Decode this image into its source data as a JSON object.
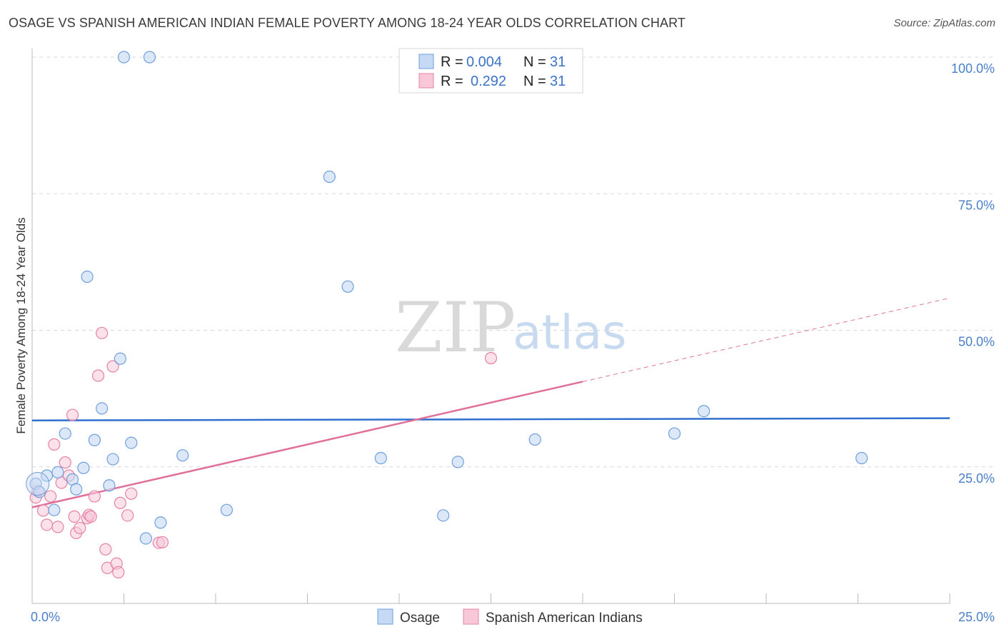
{
  "header": {
    "title": "OSAGE VS SPANISH AMERICAN INDIAN FEMALE POVERTY AMONG 18-24 YEAR OLDS CORRELATION CHART",
    "source": "Source: ZipAtlas.com"
  },
  "legend_box": {
    "rows": [
      {
        "r_label": "R =",
        "r_value": "0.004",
        "n_label": "N =",
        "n_value": "31"
      },
      {
        "r_label": "R =",
        "r_value": "0.292",
        "n_label": "N =",
        "n_value": "31"
      }
    ]
  },
  "watermark": {
    "zip": "ZIP",
    "atlas": "atlas"
  },
  "colors": {
    "osage_fill": "#c5d9f4",
    "osage_stroke": "#6f9fdc",
    "osage_line": "#2f6fcf",
    "sai_fill": "#f8c8d8",
    "sai_stroke": "#e682a5",
    "sai_line": "#e0709a",
    "tick": "#4a7fc9",
    "grid": "#d8d8d8"
  },
  "chart_data": {
    "type": "scatter",
    "title": "OSAGE VS SPANISH AMERICAN INDIAN FEMALE POVERTY AMONG 18-24 YEAR OLDS CORRELATION CHART",
    "xlabel": "",
    "ylabel": "Female Poverty Among 18-24 Year Olds",
    "xlim": [
      0,
      25
    ],
    "ylim": [
      0,
      100
    ],
    "x_tick_labels": [
      {
        "value": 0,
        "label": "0.0%"
      },
      {
        "value": 25,
        "label": "25.0%"
      }
    ],
    "y_tick_labels": [
      {
        "value": 25,
        "label": "25.0%"
      },
      {
        "value": 50,
        "label": "50.0%"
      },
      {
        "value": 75,
        "label": "75.0%"
      },
      {
        "value": 100,
        "label": "100.0%"
      }
    ],
    "grid": true,
    "legend_position": "bottom",
    "series": [
      {
        "name": "Osage",
        "r": 0.004,
        "n": 31,
        "trend": {
          "x": [
            0,
            25
          ],
          "y": [
            33.5,
            33.9
          ]
        },
        "points": [
          [
            0.1,
            21.9
          ],
          [
            0.2,
            20.4
          ],
          [
            0.4,
            23.4
          ],
          [
            0.6,
            17.1
          ],
          [
            0.9,
            31.1
          ],
          [
            1.1,
            22.7
          ],
          [
            1.2,
            20.9
          ],
          [
            1.4,
            24.8
          ],
          [
            1.5,
            59.8
          ],
          [
            1.7,
            29.9
          ],
          [
            1.9,
            35.7
          ],
          [
            2.1,
            21.6
          ],
          [
            2.2,
            26.4
          ],
          [
            2.4,
            44.8
          ],
          [
            2.5,
            100.0
          ],
          [
            2.7,
            29.4
          ],
          [
            3.1,
            11.9
          ],
          [
            3.2,
            100.0
          ],
          [
            3.5,
            14.8
          ],
          [
            4.1,
            27.1
          ],
          [
            5.3,
            17.1
          ],
          [
            8.1,
            78.1
          ],
          [
            8.6,
            58.0
          ],
          [
            9.5,
            26.6
          ],
          [
            11.2,
            16.1
          ],
          [
            11.6,
            25.9
          ],
          [
            13.7,
            30.0
          ],
          [
            17.5,
            31.1
          ],
          [
            18.3,
            35.2
          ],
          [
            22.6,
            26.6
          ],
          [
            0.7,
            24.0
          ]
        ]
      },
      {
        "name": "Spanish American Indians",
        "r": 0.292,
        "n": 31,
        "trend": {
          "x": [
            0,
            15
          ],
          "y": [
            17.6,
            40.6
          ]
        },
        "trend_ext": {
          "x": [
            15,
            25
          ],
          "y": [
            40.6,
            55.9
          ]
        },
        "points": [
          [
            0.1,
            19.4
          ],
          [
            0.15,
            20.6
          ],
          [
            0.3,
            17.0
          ],
          [
            0.4,
            14.4
          ],
          [
            0.5,
            19.6
          ],
          [
            0.6,
            29.1
          ],
          [
            0.7,
            14.0
          ],
          [
            0.8,
            22.1
          ],
          [
            0.9,
            25.8
          ],
          [
            1.0,
            23.4
          ],
          [
            1.1,
            34.5
          ],
          [
            1.2,
            12.9
          ],
          [
            1.3,
            13.8
          ],
          [
            1.5,
            15.6
          ],
          [
            1.55,
            16.2
          ],
          [
            1.6,
            15.9
          ],
          [
            1.7,
            19.6
          ],
          [
            1.8,
            41.7
          ],
          [
            1.9,
            49.5
          ],
          [
            2.0,
            9.9
          ],
          [
            2.05,
            6.5
          ],
          [
            2.2,
            43.4
          ],
          [
            2.3,
            7.3
          ],
          [
            2.35,
            5.7
          ],
          [
            2.4,
            18.4
          ],
          [
            2.6,
            16.1
          ],
          [
            2.7,
            20.1
          ],
          [
            3.45,
            11.1
          ],
          [
            3.55,
            11.2
          ],
          [
            12.5,
            44.9
          ],
          [
            1.15,
            15.9
          ]
        ]
      }
    ]
  }
}
